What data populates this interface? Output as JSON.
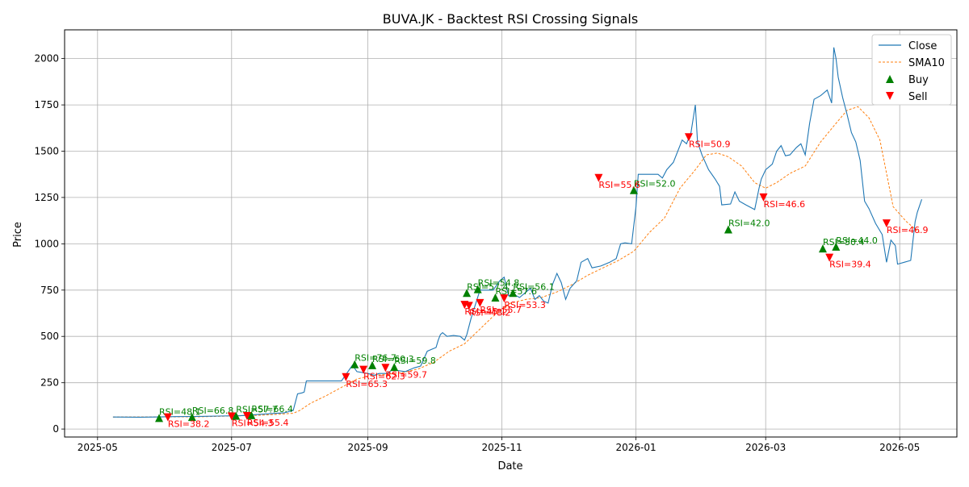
{
  "chart_data": {
    "type": "line",
    "title": "BUVA.JK - Backtest RSI Crossing Signals",
    "xlabel": "Date",
    "ylabel": "Price",
    "xlim": [
      "2025-04-16",
      "2026-05-27"
    ],
    "ylim": [
      -43,
      2155
    ],
    "x_ticks": [
      "2025-05-01",
      "2025-07-01",
      "2025-09-01",
      "2025-11-01",
      "2026-01-01",
      "2026-03-01",
      "2026-05-01"
    ],
    "x_tick_labels": [
      "2025-05",
      "2025-07",
      "2025-09",
      "2025-11",
      "2026-01",
      "2026-03",
      "2026-05"
    ],
    "y_ticks": [
      0,
      250,
      500,
      750,
      1000,
      1250,
      1500,
      1750,
      2000
    ],
    "grid": true,
    "legend_position": "top-right",
    "legend": [
      {
        "key": "close",
        "label": "Close"
      },
      {
        "key": "sma",
        "label": "SMA10"
      },
      {
        "key": "buy",
        "label": "Buy"
      },
      {
        "key": "sell",
        "label": "Sell"
      }
    ],
    "colors": {
      "close": "#1f77b4",
      "sma": "#ff7f0e",
      "buy": "#008000",
      "sell": "#ff0000",
      "grid": "#b0b0b0"
    },
    "series": [
      {
        "name": "Close",
        "points": [
          [
            "2025-05-08",
            65
          ],
          [
            "2025-05-20",
            64
          ],
          [
            "2025-05-27",
            65
          ],
          [
            "2025-06-05",
            67
          ],
          [
            "2025-06-15",
            68
          ],
          [
            "2025-06-25",
            70
          ],
          [
            "2025-07-05",
            72
          ],
          [
            "2025-07-15",
            80
          ],
          [
            "2025-07-25",
            88
          ],
          [
            "2025-07-29",
            100
          ],
          [
            "2025-07-31",
            190
          ],
          [
            "2025-08-02",
            195
          ],
          [
            "2025-08-03",
            200
          ],
          [
            "2025-08-04",
            260
          ],
          [
            "2025-08-06",
            260
          ],
          [
            "2025-08-15",
            260
          ],
          [
            "2025-08-20",
            260
          ],
          [
            "2025-08-25",
            345
          ],
          [
            "2025-08-27",
            310
          ],
          [
            "2025-09-01",
            300
          ],
          [
            "2025-09-04",
            290
          ],
          [
            "2025-09-06",
            300
          ],
          [
            "2025-09-10",
            300
          ],
          [
            "2025-09-12",
            320
          ],
          [
            "2025-09-18",
            310
          ],
          [
            "2025-09-22",
            330
          ],
          [
            "2025-09-25",
            340
          ],
          [
            "2025-09-28",
            420
          ],
          [
            "2025-09-30",
            430
          ],
          [
            "2025-10-02",
            440
          ],
          [
            "2025-10-03",
            480
          ],
          [
            "2025-10-04",
            510
          ],
          [
            "2025-10-05",
            520
          ],
          [
            "2025-10-07",
            500
          ],
          [
            "2025-10-10",
            505
          ],
          [
            "2025-10-13",
            500
          ],
          [
            "2025-10-15",
            480
          ],
          [
            "2025-10-16",
            510
          ],
          [
            "2025-10-18",
            600
          ],
          [
            "2025-10-22",
            750
          ],
          [
            "2025-10-28",
            750
          ],
          [
            "2025-10-31",
            800
          ],
          [
            "2025-11-02",
            820
          ],
          [
            "2025-11-04",
            720
          ],
          [
            "2025-11-06",
            730
          ],
          [
            "2025-11-09",
            710
          ],
          [
            "2025-11-12",
            740
          ],
          [
            "2025-11-14",
            760
          ],
          [
            "2025-11-16",
            700
          ],
          [
            "2025-11-18",
            720
          ],
          [
            "2025-11-20",
            690
          ],
          [
            "2025-11-22",
            680
          ],
          [
            "2025-11-24",
            780
          ],
          [
            "2025-11-26",
            840
          ],
          [
            "2025-11-28",
            790
          ],
          [
            "2025-11-30",
            700
          ],
          [
            "2025-12-02",
            760
          ],
          [
            "2025-12-05",
            800
          ],
          [
            "2025-12-07",
            900
          ],
          [
            "2025-12-10",
            920
          ],
          [
            "2025-12-12",
            870
          ],
          [
            "2025-12-16",
            880
          ],
          [
            "2025-12-20",
            900
          ],
          [
            "2025-12-23",
            920
          ],
          [
            "2025-12-25",
            1000
          ],
          [
            "2025-12-27",
            1005
          ],
          [
            "2025-12-30",
            1000
          ],
          [
            "2026-01-01",
            1200
          ],
          [
            "2026-01-02",
            1375
          ],
          [
            "2026-01-08",
            1375
          ],
          [
            "2026-01-11",
            1375
          ],
          [
            "2026-01-13",
            1355
          ],
          [
            "2026-01-15",
            1400
          ],
          [
            "2026-01-18",
            1440
          ],
          [
            "2026-01-22",
            1560
          ],
          [
            "2026-01-24",
            1540
          ],
          [
            "2026-01-26",
            1600
          ],
          [
            "2026-01-28",
            1750
          ],
          [
            "2026-01-29",
            1550
          ],
          [
            "2026-01-31",
            1480
          ],
          [
            "2026-02-03",
            1400
          ],
          [
            "2026-02-06",
            1350
          ],
          [
            "2026-02-08",
            1310
          ],
          [
            "2026-02-09",
            1210
          ],
          [
            "2026-02-13",
            1215
          ],
          [
            "2026-02-15",
            1280
          ],
          [
            "2026-02-17",
            1230
          ],
          [
            "2026-02-20",
            1210
          ],
          [
            "2026-02-24",
            1185
          ],
          [
            "2026-02-26",
            1300
          ],
          [
            "2026-02-27",
            1350
          ],
          [
            "2026-03-01",
            1400
          ],
          [
            "2026-03-04",
            1430
          ],
          [
            "2026-03-06",
            1500
          ],
          [
            "2026-03-08",
            1530
          ],
          [
            "2026-03-10",
            1475
          ],
          [
            "2026-03-12",
            1480
          ],
          [
            "2026-03-15",
            1520
          ],
          [
            "2026-03-17",
            1540
          ],
          [
            "2026-03-19",
            1480
          ],
          [
            "2026-03-21",
            1650
          ],
          [
            "2026-03-23",
            1780
          ],
          [
            "2026-03-26",
            1800
          ],
          [
            "2026-03-29",
            1830
          ],
          [
            "2026-03-31",
            1760
          ],
          [
            "2026-04-01",
            2060
          ],
          [
            "2026-04-02",
            2000
          ],
          [
            "2026-04-03",
            1900
          ],
          [
            "2026-04-05",
            1790
          ],
          [
            "2026-04-07",
            1700
          ],
          [
            "2026-04-09",
            1600
          ],
          [
            "2026-04-11",
            1550
          ],
          [
            "2026-04-13",
            1450
          ],
          [
            "2026-04-15",
            1230
          ],
          [
            "2026-04-17",
            1190
          ],
          [
            "2026-04-20",
            1110
          ],
          [
            "2026-04-23",
            1050
          ],
          [
            "2026-04-25",
            900
          ],
          [
            "2026-04-27",
            1020
          ],
          [
            "2026-04-29",
            990
          ],
          [
            "2026-04-30",
            890
          ],
          [
            "2026-05-03",
            900
          ],
          [
            "2026-05-06",
            910
          ],
          [
            "2026-05-08",
            1120
          ],
          [
            "2026-05-09",
            1170
          ],
          [
            "2026-05-11",
            1240
          ]
        ]
      }
    ],
    "sma_series": {
      "name": "SMA10",
      "points": [
        [
          "2025-05-08",
          65
        ],
        [
          "2025-06-15",
          66
        ],
        [
          "2025-07-15",
          75
        ],
        [
          "2025-07-29",
          85
        ],
        [
          "2025-08-01",
          100
        ],
        [
          "2025-08-06",
          140
        ],
        [
          "2025-08-13",
          180
        ],
        [
          "2025-08-20",
          225
        ],
        [
          "2025-08-27",
          270
        ],
        [
          "2025-09-03",
          290
        ],
        [
          "2025-09-10",
          295
        ],
        [
          "2025-09-17",
          305
        ],
        [
          "2025-09-24",
          325
        ],
        [
          "2025-10-01",
          360
        ],
        [
          "2025-10-08",
          420
        ],
        [
          "2025-10-15",
          460
        ],
        [
          "2025-10-22",
          540
        ],
        [
          "2025-10-29",
          620
        ],
        [
          "2025-11-05",
          680
        ],
        [
          "2025-11-12",
          700
        ],
        [
          "2025-11-19",
          710
        ],
        [
          "2025-11-26",
          740
        ],
        [
          "2025-12-03",
          780
        ],
        [
          "2025-12-10",
          830
        ],
        [
          "2025-12-17",
          870
        ],
        [
          "2025-12-24",
          910
        ],
        [
          "2025-12-31",
          960
        ],
        [
          "2026-01-07",
          1060
        ],
        [
          "2026-01-14",
          1140
        ],
        [
          "2026-01-21",
          1300
        ],
        [
          "2026-01-28",
          1400
        ],
        [
          "2026-02-02",
          1480
        ],
        [
          "2026-02-07",
          1490
        ],
        [
          "2026-02-12",
          1470
        ],
        [
          "2026-02-18",
          1420
        ],
        [
          "2026-02-24",
          1330
        ],
        [
          "2026-03-01",
          1300
        ],
        [
          "2026-03-06",
          1330
        ],
        [
          "2026-03-12",
          1380
        ],
        [
          "2026-03-19",
          1420
        ],
        [
          "2026-03-26",
          1550
        ],
        [
          "2026-04-02",
          1650
        ],
        [
          "2026-04-07",
          1720
        ],
        [
          "2026-04-12",
          1740
        ],
        [
          "2026-04-17",
          1680
        ],
        [
          "2026-04-22",
          1560
        ],
        [
          "2026-04-28",
          1200
        ],
        [
          "2026-05-04",
          1120
        ],
        [
          "2026-05-10",
          1060
        ]
      ]
    },
    "buy_signals": [
      {
        "date": "2025-05-29",
        "price": 60,
        "label": "RSI=48.1"
      },
      {
        "date": "2025-06-13",
        "price": 65,
        "label": "RSI=66.8"
      },
      {
        "date": "2025-07-03",
        "price": 72,
        "label": "RSI=57.7"
      },
      {
        "date": "2025-07-10",
        "price": 75,
        "label": "RSI=66.4"
      },
      {
        "date": "2025-08-26",
        "price": 350,
        "label": "RSI=76.7"
      },
      {
        "date": "2025-09-03",
        "price": 345,
        "label": "RSI=60.3"
      },
      {
        "date": "2025-09-13",
        "price": 335,
        "label": "RSI=59.8"
      },
      {
        "date": "2025-10-16",
        "price": 735,
        "label": "RSI=57.4"
      },
      {
        "date": "2025-10-21",
        "price": 755,
        "label": "RSI=54.8"
      },
      {
        "date": "2025-10-29",
        "price": 710,
        "label": "RSI=57.6"
      },
      {
        "date": "2025-11-06",
        "price": 735,
        "label": "RSI=56.1"
      },
      {
        "date": "2025-12-31",
        "price": 1290,
        "label": "RSI=52.0"
      },
      {
        "date": "2026-02-12",
        "price": 1078,
        "label": "RSI=42.0"
      },
      {
        "date": "2026-03-27",
        "price": 975,
        "label": "RSI=50.4"
      },
      {
        "date": "2026-04-02",
        "price": 985,
        "label": "RSI=44.0"
      }
    ],
    "sell_signals": [
      {
        "date": "2025-06-02",
        "price": 63,
        "label": "RSI=38.2"
      },
      {
        "date": "2025-07-01",
        "price": 68,
        "label": "RSI=54.3"
      },
      {
        "date": "2025-07-08",
        "price": 70,
        "label": "RSI=55.4"
      },
      {
        "date": "2025-08-22",
        "price": 280,
        "label": "RSI=65.3"
      },
      {
        "date": "2025-08-30",
        "price": 320,
        "label": "RSI=62.3"
      },
      {
        "date": "2025-09-09",
        "price": 330,
        "label": "RSI=59.7"
      },
      {
        "date": "2025-10-15",
        "price": 670,
        "label": "RSI=45.1"
      },
      {
        "date": "2025-10-17",
        "price": 665,
        "label": "RSI=48.2"
      },
      {
        "date": "2025-10-22",
        "price": 680,
        "label": "RSI=55.7"
      },
      {
        "date": "2025-11-02",
        "price": 705,
        "label": "RSI=53.3"
      },
      {
        "date": "2025-12-15",
        "price": 1355,
        "label": "RSI=55.6"
      },
      {
        "date": "2026-01-25",
        "price": 1575,
        "label": "RSI=50.9"
      },
      {
        "date": "2026-02-28",
        "price": 1250,
        "label": "RSI=46.6"
      },
      {
        "date": "2026-03-30",
        "price": 925,
        "label": "RSI=39.4"
      },
      {
        "date": "2026-04-25",
        "price": 1110,
        "label": "RSI=46.9"
      }
    ]
  }
}
